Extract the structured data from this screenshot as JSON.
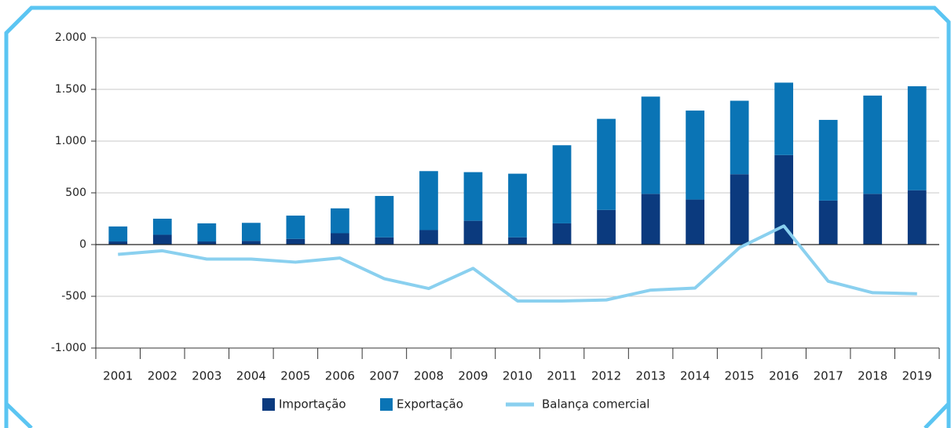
{
  "chart_data": {
    "type": "bar",
    "categories": [
      "2001",
      "2002",
      "2003",
      "2004",
      "2005",
      "2006",
      "2007",
      "2008",
      "2009",
      "2010",
      "2011",
      "2012",
      "2013",
      "2014",
      "2015",
      "2016",
      "2017",
      "2018",
      "2019"
    ],
    "series": [
      {
        "name": "Importação",
        "color": "#0b3a7e",
        "values": [
          30,
          95,
          30,
          35,
          55,
          110,
          70,
          140,
          230,
          70,
          205,
          335,
          490,
          435,
          680,
          865,
          425,
          490,
          525
        ]
      },
      {
        "name": "Exportação",
        "color": "#0a74b5",
        "values": [
          145,
          155,
          175,
          175,
          225,
          240,
          400,
          570,
          470,
          615,
          755,
          880,
          940,
          860,
          710,
          700,
          780,
          950,
          1005
        ]
      },
      {
        "name": "Balança comercial",
        "type": "line",
        "color": "#8ad0ef",
        "values": [
          -95,
          -60,
          -140,
          -140,
          -170,
          -130,
          -330,
          -425,
          -230,
          -545,
          -545,
          -535,
          -440,
          -420,
          -30,
          180,
          -355,
          -465,
          -475
        ]
      }
    ],
    "stacked": true,
    "ylim": [
      -1000,
      2000
    ],
    "yticks": [
      {
        "value": -1000,
        "label": "-1.000"
      },
      -500,
      0,
      500,
      {
        "value": 1000,
        "label": "1.000"
      },
      {
        "value": 1500,
        "label": "1.500"
      },
      {
        "value": 2000,
        "label": "2.000"
      }
    ],
    "grid": true,
    "legend": "bottom"
  }
}
